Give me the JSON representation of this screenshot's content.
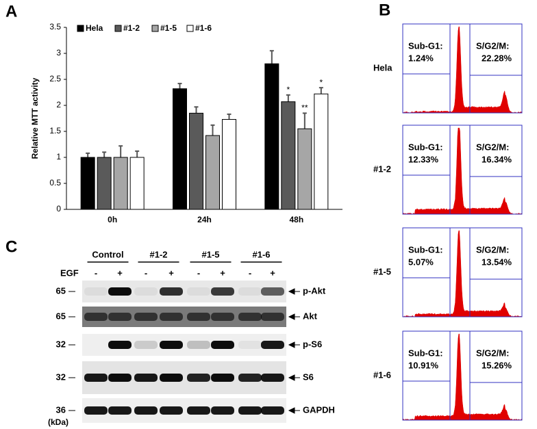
{
  "panels": {
    "a": "A",
    "b": "B",
    "c": "C"
  },
  "chart_data": {
    "type": "bar",
    "ylabel": "Relative MTT activity",
    "categories": [
      "0h",
      "24h",
      "48h"
    ],
    "series": [
      {
        "name": "Hela",
        "color": "#000000",
        "values": [
          1,
          2.32,
          2.8
        ],
        "errors": [
          0.08,
          0.1,
          0.25
        ],
        "significance": [
          null,
          null,
          null
        ]
      },
      {
        "name": "#1-2",
        "color": "#5a5a5a",
        "values": [
          1,
          1.85,
          2.07
        ],
        "errors": [
          0.1,
          0.12,
          0.13
        ],
        "significance": [
          null,
          null,
          "*"
        ]
      },
      {
        "name": "#1-5",
        "color": "#a6a6a6",
        "values": [
          1,
          1.42,
          1.55
        ],
        "errors": [
          0.22,
          0.2,
          0.3
        ],
        "significance": [
          null,
          null,
          "**"
        ]
      },
      {
        "name": "#1-6",
        "color": "#ffffff",
        "values": [
          1,
          1.73,
          2.22
        ],
        "errors": [
          0.12,
          0.1,
          0.12
        ],
        "significance": [
          null,
          null,
          "*"
        ]
      }
    ],
    "ylim": [
      0,
      3.5
    ],
    "yticks": [
      0,
      0.5,
      1,
      1.5,
      2,
      2.5,
      3,
      3.5
    ],
    "legend": "top-left"
  },
  "flow": {
    "samples": [
      {
        "label": "Hela",
        "subg1_label": "Sub-G1:",
        "subg1": "1.24%",
        "g2m_label": "S/G2/M:",
        "g2m": "22.28%"
      },
      {
        "label": "#1-2",
        "subg1_label": "Sub-G1:",
        "subg1": "12.33%",
        "g2m_label": "S/G2/M:",
        "g2m": "16.34%"
      },
      {
        "label": "#1-5",
        "subg1_label": "Sub-G1:",
        "subg1": "5.07%",
        "g2m_label": "S/G2/M:",
        "g2m": "13.54%"
      },
      {
        "label": "#1-6",
        "subg1_label": "Sub-G1:",
        "subg1": "10.91%",
        "g2m_label": "S/G2/M:",
        "g2m": "15.26%"
      }
    ]
  },
  "blot": {
    "groups": [
      "Control",
      "#1-2",
      "#1-5",
      "#1-6"
    ],
    "treatment_label": "EGF",
    "treatment": [
      "-",
      "+",
      "-",
      "+",
      "-",
      "+",
      "-",
      "+"
    ],
    "rows": [
      {
        "kda": 65,
        "protein": "p-Akt"
      },
      {
        "kda": 65,
        "protein": "Akt"
      },
      {
        "kda": 32,
        "protein": "p-S6"
      },
      {
        "kda": 32,
        "protein": "S6"
      },
      {
        "kda": 36,
        "protein": "GAPDH"
      }
    ],
    "unit": "(kDa)"
  }
}
